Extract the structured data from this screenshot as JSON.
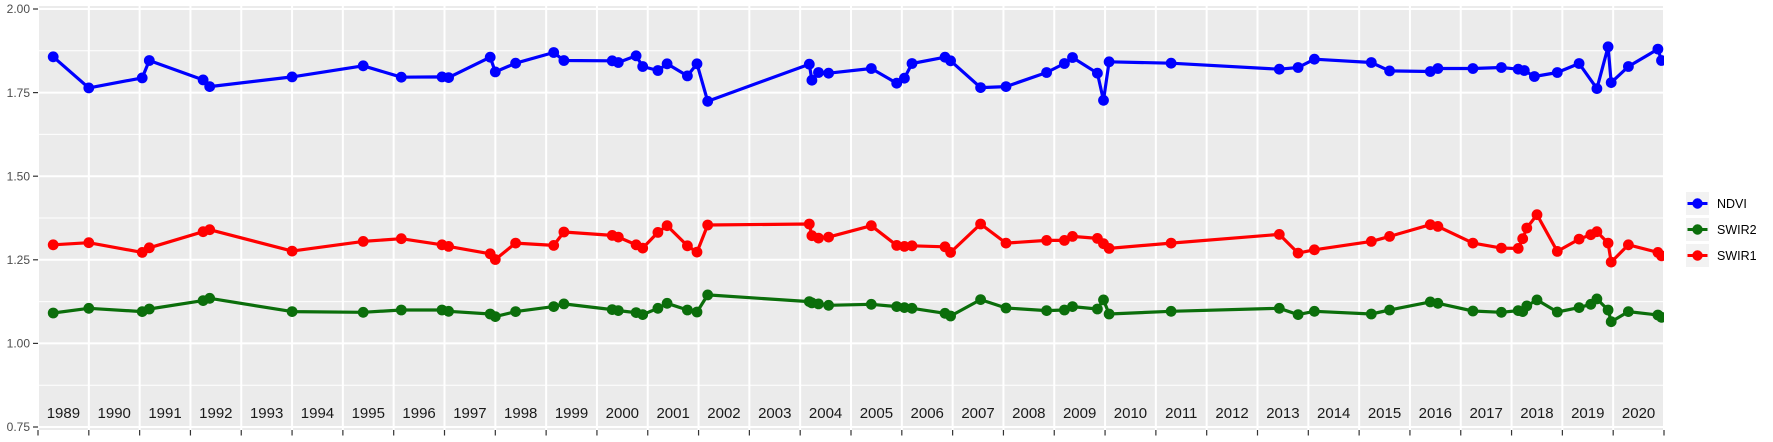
{
  "chart_data": {
    "type": "line",
    "title": "",
    "xlabel": "",
    "ylabel": "",
    "grid": true,
    "panel_background": "#EBEBEB",
    "grid_color": "#FFFFFF",
    "axis_text_color": "#4D4D4D",
    "year_label_color": "#1A1A1A",
    "tick_color": "#333333",
    "x_axis": {
      "min": 1989,
      "max": 2021,
      "tick_labels": [
        "1989",
        "1990",
        "1991",
        "1992",
        "1993",
        "1994",
        "1995",
        "1996",
        "1997",
        "1998",
        "1999",
        "2000",
        "2001",
        "2002",
        "2003",
        "2004",
        "2005",
        "2006",
        "2007",
        "2008",
        "2009",
        "2010",
        "2011",
        "2012",
        "2013",
        "2014",
        "2015",
        "2016",
        "2017",
        "2018",
        "2019",
        "2020"
      ]
    },
    "y_axis": {
      "min": 0.75,
      "max": 2.0,
      "ticks": [
        {
          "label": "2.00",
          "value": 2.0
        },
        {
          "label": "1.75",
          "value": 1.75
        },
        {
          "label": "1.50",
          "value": 1.5
        },
        {
          "label": "1.25",
          "value": 1.25
        },
        {
          "label": "1.00",
          "value": 1.0
        },
        {
          "label": "0.75",
          "value": 0.75
        }
      ],
      "minor_values": [
        1.875,
        1.625,
        1.375,
        1.125,
        0.875
      ]
    },
    "legend": {
      "position": "right-center",
      "key_background": "#F2F2F2",
      "items": [
        {
          "label": "NDVI",
          "color": "#0000FF"
        },
        {
          "label": "SWIR2",
          "color": "#0B6E0B"
        },
        {
          "label": "SWIR1",
          "color": "#FF0000"
        }
      ]
    },
    "series": [
      {
        "name": "NDVI",
        "color": "#0000FF",
        "points": [
          [
            1989.3,
            1.857
          ],
          [
            1990.0,
            1.764
          ],
          [
            1991.05,
            1.794
          ],
          [
            1991.19,
            1.846
          ],
          [
            1992.25,
            1.788
          ],
          [
            1992.38,
            1.768
          ],
          [
            1994.0,
            1.797
          ],
          [
            1995.4,
            1.83
          ],
          [
            1996.15,
            1.796
          ],
          [
            1996.95,
            1.797
          ],
          [
            1997.08,
            1.795
          ],
          [
            1997.9,
            1.856
          ],
          [
            1998.0,
            1.812
          ],
          [
            1998.4,
            1.838
          ],
          [
            1999.15,
            1.87
          ],
          [
            1999.35,
            1.846
          ],
          [
            2000.3,
            1.845
          ],
          [
            2000.42,
            1.84
          ],
          [
            2000.77,
            1.86
          ],
          [
            2000.9,
            1.828
          ],
          [
            2001.2,
            1.816
          ],
          [
            2001.38,
            1.836
          ],
          [
            2001.78,
            1.8
          ],
          [
            2001.97,
            1.836
          ],
          [
            2002.18,
            1.724
          ],
          [
            2004.18,
            1.835
          ],
          [
            2004.23,
            1.787
          ],
          [
            2004.36,
            1.81
          ],
          [
            2004.56,
            1.808
          ],
          [
            2005.4,
            1.822
          ],
          [
            2005.9,
            1.778
          ],
          [
            2006.05,
            1.793
          ],
          [
            2006.2,
            1.837
          ],
          [
            2006.85,
            1.856
          ],
          [
            2006.96,
            1.845
          ],
          [
            2007.55,
            1.765
          ],
          [
            2008.05,
            1.768
          ],
          [
            2008.85,
            1.81
          ],
          [
            2009.2,
            1.837
          ],
          [
            2009.36,
            1.855
          ],
          [
            2009.85,
            1.808
          ],
          [
            2009.97,
            1.727
          ],
          [
            2010.08,
            1.842
          ],
          [
            2011.3,
            1.838
          ],
          [
            2013.43,
            1.82
          ],
          [
            2013.8,
            1.825
          ],
          [
            2014.12,
            1.85
          ],
          [
            2015.24,
            1.84
          ],
          [
            2015.6,
            1.815
          ],
          [
            2016.4,
            1.813
          ],
          [
            2016.55,
            1.822
          ],
          [
            2017.24,
            1.822
          ],
          [
            2017.8,
            1.825
          ],
          [
            2018.13,
            1.82
          ],
          [
            2018.25,
            1.816
          ],
          [
            2018.45,
            1.798
          ],
          [
            2018.9,
            1.81
          ],
          [
            2019.33,
            1.837
          ],
          [
            2019.68,
            1.762
          ],
          [
            2019.9,
            1.887
          ],
          [
            2019.96,
            1.78
          ],
          [
            2020.3,
            1.828
          ],
          [
            2020.88,
            1.88
          ],
          [
            2020.95,
            1.846
          ]
        ]
      },
      {
        "name": "SWIR2",
        "color": "#0B6E0B",
        "points": [
          [
            1989.3,
            1.091
          ],
          [
            1990.0,
            1.105
          ],
          [
            1991.05,
            1.095
          ],
          [
            1991.19,
            1.103
          ],
          [
            1992.25,
            1.128
          ],
          [
            1992.38,
            1.135
          ],
          [
            1994.0,
            1.095
          ],
          [
            1995.4,
            1.093
          ],
          [
            1996.15,
            1.1
          ],
          [
            1996.95,
            1.1
          ],
          [
            1997.08,
            1.096
          ],
          [
            1997.9,
            1.088
          ],
          [
            1998.0,
            1.08
          ],
          [
            1998.4,
            1.095
          ],
          [
            1999.15,
            1.11
          ],
          [
            1999.35,
            1.118
          ],
          [
            2000.3,
            1.101
          ],
          [
            2000.42,
            1.098
          ],
          [
            2000.77,
            1.092
          ],
          [
            2000.9,
            1.086
          ],
          [
            2001.2,
            1.105
          ],
          [
            2001.38,
            1.12
          ],
          [
            2001.78,
            1.1
          ],
          [
            2001.97,
            1.094
          ],
          [
            2002.18,
            1.145
          ],
          [
            2004.18,
            1.125
          ],
          [
            2004.23,
            1.121
          ],
          [
            2004.36,
            1.118
          ],
          [
            2004.56,
            1.114
          ],
          [
            2005.4,
            1.117
          ],
          [
            2005.9,
            1.11
          ],
          [
            2006.05,
            1.107
          ],
          [
            2006.2,
            1.105
          ],
          [
            2006.85,
            1.09
          ],
          [
            2006.96,
            1.082
          ],
          [
            2007.55,
            1.131
          ],
          [
            2008.05,
            1.106
          ],
          [
            2008.85,
            1.098
          ],
          [
            2009.2,
            1.1
          ],
          [
            2009.36,
            1.11
          ],
          [
            2009.85,
            1.103
          ],
          [
            2009.97,
            1.13
          ],
          [
            2010.08,
            1.088
          ],
          [
            2011.3,
            1.096
          ],
          [
            2013.43,
            1.105
          ],
          [
            2013.8,
            1.086
          ],
          [
            2014.12,
            1.096
          ],
          [
            2015.24,
            1.088
          ],
          [
            2015.6,
            1.1
          ],
          [
            2016.4,
            1.124
          ],
          [
            2016.55,
            1.12
          ],
          [
            2017.24,
            1.097
          ],
          [
            2017.8,
            1.093
          ],
          [
            2018.13,
            1.098
          ],
          [
            2018.22,
            1.095
          ],
          [
            2018.3,
            1.112
          ],
          [
            2018.5,
            1.13
          ],
          [
            2018.9,
            1.094
          ],
          [
            2019.33,
            1.107
          ],
          [
            2019.56,
            1.117
          ],
          [
            2019.68,
            1.133
          ],
          [
            2019.9,
            1.1
          ],
          [
            2019.96,
            1.065
          ],
          [
            2020.3,
            1.095
          ],
          [
            2020.88,
            1.085
          ],
          [
            2020.95,
            1.078
          ]
        ]
      },
      {
        "name": "SWIR1",
        "color": "#FF0000",
        "points": [
          [
            1989.3,
            1.295
          ],
          [
            1990.0,
            1.301
          ],
          [
            1991.05,
            1.272
          ],
          [
            1991.19,
            1.286
          ],
          [
            1992.25,
            1.334
          ],
          [
            1992.38,
            1.34
          ],
          [
            1994.0,
            1.276
          ],
          [
            1995.4,
            1.305
          ],
          [
            1996.15,
            1.313
          ],
          [
            1996.95,
            1.295
          ],
          [
            1997.08,
            1.29
          ],
          [
            1997.9,
            1.268
          ],
          [
            1998.0,
            1.251
          ],
          [
            1998.4,
            1.3
          ],
          [
            1999.15,
            1.293
          ],
          [
            1999.35,
            1.333
          ],
          [
            2000.3,
            1.323
          ],
          [
            2000.42,
            1.318
          ],
          [
            2000.77,
            1.295
          ],
          [
            2000.9,
            1.285
          ],
          [
            2001.2,
            1.332
          ],
          [
            2001.38,
            1.352
          ],
          [
            2001.78,
            1.292
          ],
          [
            2001.97,
            1.273
          ],
          [
            2002.18,
            1.354
          ],
          [
            2004.18,
            1.357
          ],
          [
            2004.23,
            1.322
          ],
          [
            2004.36,
            1.315
          ],
          [
            2004.56,
            1.318
          ],
          [
            2005.4,
            1.352
          ],
          [
            2005.9,
            1.293
          ],
          [
            2006.05,
            1.29
          ],
          [
            2006.2,
            1.292
          ],
          [
            2006.85,
            1.289
          ],
          [
            2006.96,
            1.272
          ],
          [
            2007.55,
            1.357
          ],
          [
            2008.05,
            1.3
          ],
          [
            2008.85,
            1.308
          ],
          [
            2009.2,
            1.308
          ],
          [
            2009.36,
            1.32
          ],
          [
            2009.85,
            1.314
          ],
          [
            2009.97,
            1.298
          ],
          [
            2010.08,
            1.284
          ],
          [
            2011.3,
            1.3
          ],
          [
            2013.43,
            1.326
          ],
          [
            2013.8,
            1.27
          ],
          [
            2014.12,
            1.28
          ],
          [
            2015.24,
            1.305
          ],
          [
            2015.6,
            1.32
          ],
          [
            2016.4,
            1.355
          ],
          [
            2016.55,
            1.35
          ],
          [
            2017.24,
            1.3
          ],
          [
            2017.8,
            1.285
          ],
          [
            2018.13,
            1.284
          ],
          [
            2018.22,
            1.313
          ],
          [
            2018.3,
            1.345
          ],
          [
            2018.5,
            1.385
          ],
          [
            2018.9,
            1.275
          ],
          [
            2019.33,
            1.312
          ],
          [
            2019.56,
            1.325
          ],
          [
            2019.68,
            1.334
          ],
          [
            2019.9,
            1.3
          ],
          [
            2019.96,
            1.243
          ],
          [
            2020.3,
            1.295
          ],
          [
            2020.88,
            1.272
          ],
          [
            2020.95,
            1.262
          ]
        ]
      }
    ]
  }
}
